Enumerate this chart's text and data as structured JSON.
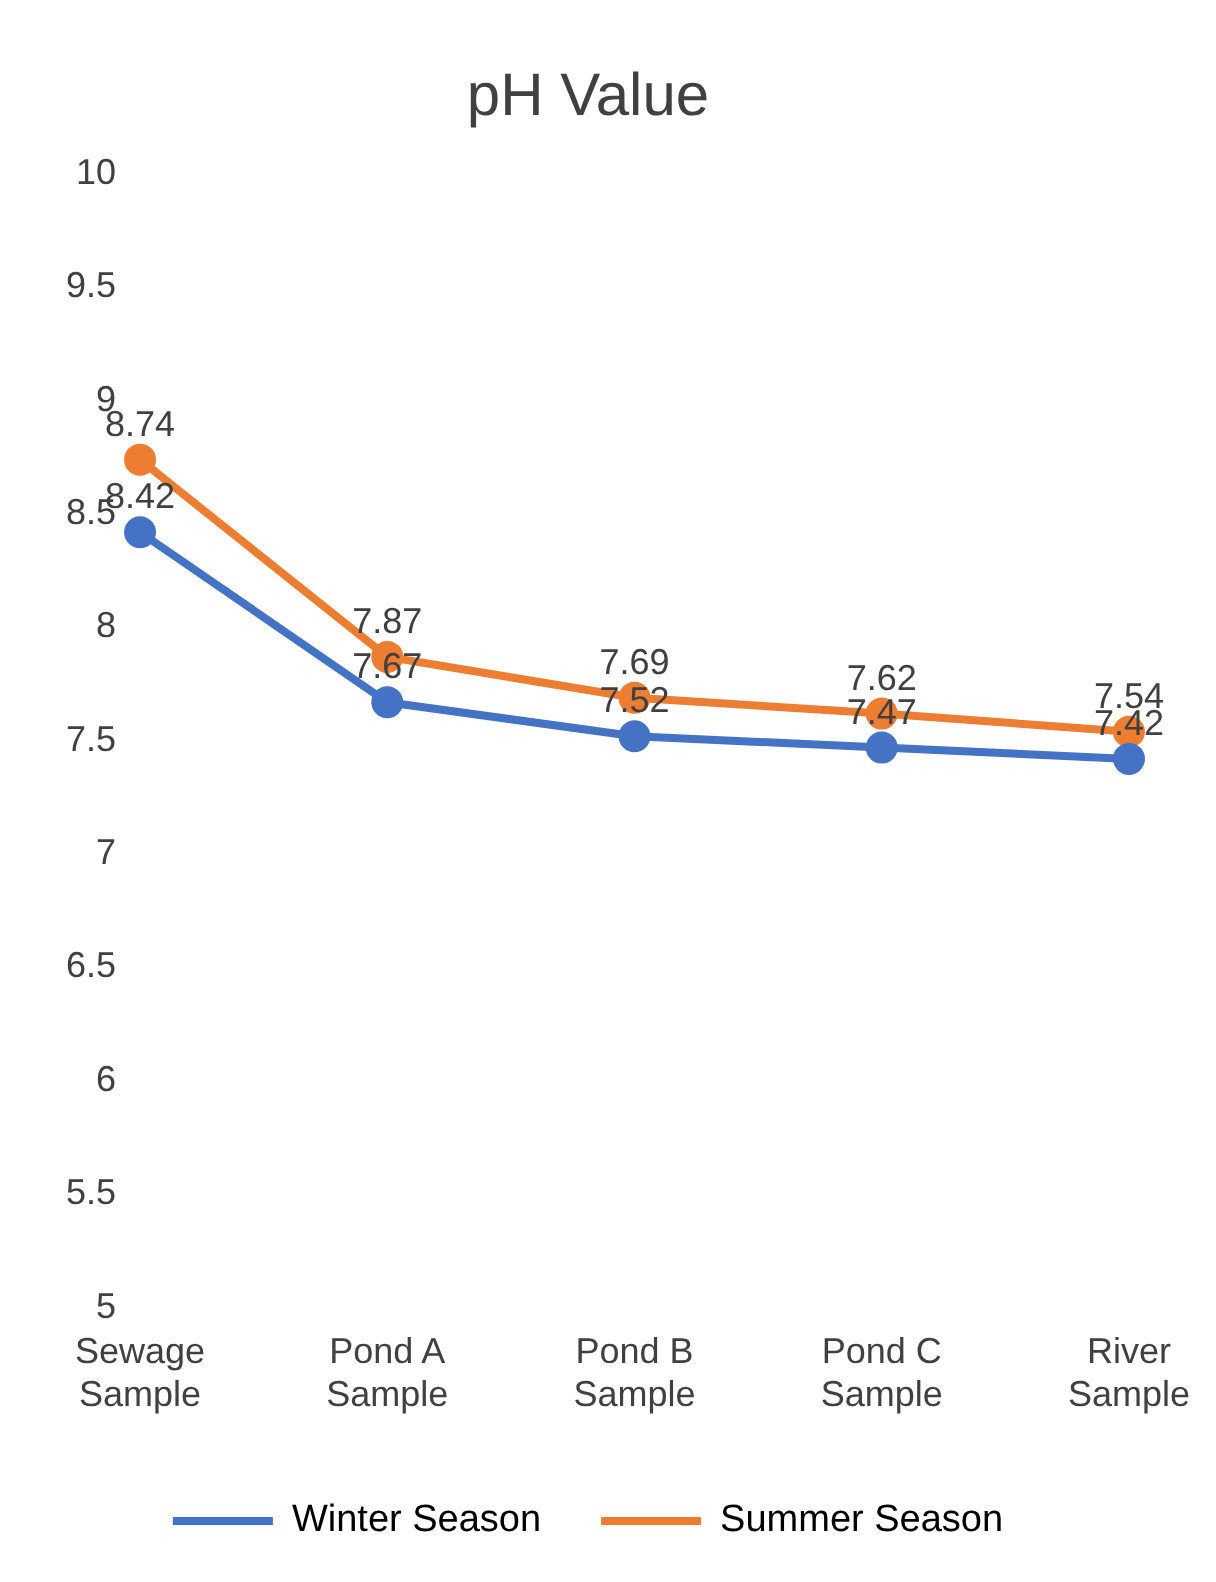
{
  "chart_data": {
    "type": "line",
    "title": "pH Value",
    "categories": [
      "Sewage Sample",
      "Pond A Sample",
      "Pond B Sample",
      "Pond C Sample",
      "River Sample"
    ],
    "series": [
      {
        "name": "Winter Season",
        "color": "#4472c4",
        "values": [
          8.42,
          7.67,
          7.52,
          7.47,
          7.42
        ]
      },
      {
        "name": "Summer Season",
        "color": "#ed7d31",
        "values": [
          8.74,
          7.87,
          7.69,
          7.62,
          7.54
        ]
      }
    ],
    "ylim": [
      5,
      10
    ],
    "yticks": [
      5,
      5.5,
      6,
      6.5,
      7,
      7.5,
      8,
      8.5,
      9,
      9.5,
      10
    ],
    "grid": false,
    "legend": "bottom",
    "marker": "circle",
    "line_style": "solid",
    "data_labels": true
  }
}
